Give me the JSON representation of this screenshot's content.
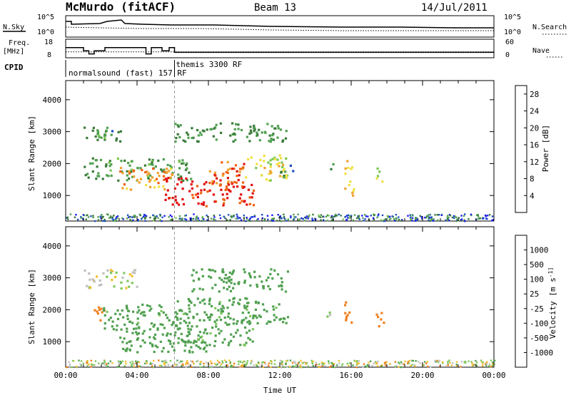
{
  "header": {
    "station": "McMurdo (fitACF)",
    "beam": "Beam 13",
    "date": "14/Jul/2011"
  },
  "summary": {
    "left_labels": {
      "nsky": "N.Sky",
      "freq_top": "Freq.",
      "freq_unit": "[MHz]",
      "cpid": "CPID"
    },
    "right_labels": {
      "nsearch": "N.Search",
      "nave": "Nave"
    },
    "nsky_ticks": [
      "10^5",
      "10^0"
    ],
    "nsearch_ticks": [
      "10^5",
      "10^0"
    ],
    "freq_ticks": [
      "18",
      "8"
    ],
    "nave_ticks": [
      "60",
      "0"
    ],
    "cpid_runs": [
      {
        "label": "normalsound (fast) 157 RF",
        "start_h": 0.0
      },
      {
        "label": "themis 3300 RF",
        "start_h": 6.1
      }
    ],
    "freq_series": [
      [
        0.0,
        14
      ],
      [
        1.0,
        14
      ],
      [
        1.0,
        12
      ],
      [
        1.3,
        12
      ],
      [
        1.3,
        10
      ],
      [
        1.6,
        10
      ],
      [
        1.6,
        12
      ],
      [
        2.2,
        12
      ],
      [
        2.2,
        14
      ],
      [
        4.5,
        14
      ],
      [
        4.5,
        10
      ],
      [
        4.8,
        10
      ],
      [
        4.8,
        14
      ],
      [
        5.4,
        14
      ],
      [
        5.4,
        12
      ],
      [
        5.8,
        12
      ],
      [
        5.8,
        14
      ],
      [
        6.1,
        14
      ],
      [
        6.1,
        11
      ],
      [
        24.0,
        11
      ]
    ],
    "nave_series": [
      [
        0.0,
        20
      ],
      [
        24.0,
        20
      ]
    ]
  },
  "colors": {
    "power_scale": [
      "#1c1cf0",
      "#1c50c0",
      "#3a7a3a",
      "#50a050",
      "#7ac850",
      "#f0e040",
      "#f0a030",
      "#f06010",
      "#e01010"
    ],
    "velocity_scale": [
      "#2040c0",
      "#3a6a40",
      "#50a050",
      "#80c860",
      "#c0c0c0",
      "#f0c030",
      "#f08020",
      "#f04010",
      "#e01010"
    ]
  },
  "chart_data": [
    {
      "type": "heatmap",
      "title": "",
      "xlabel": "",
      "ylabel": "Slant Range [km]",
      "xlim": [
        0,
        24
      ],
      "ylim": [
        200,
        4600
      ],
      "x_ticks": [
        "00:00",
        "04:00",
        "08:00",
        "12:00",
        "16:00",
        "20:00",
        "00:00"
      ],
      "y_ticks": [
        1000,
        2000,
        3000,
        4000
      ],
      "colorbar": {
        "label": "Power [dB]",
        "ticks": [
          4,
          8,
          12,
          16,
          20,
          24,
          28
        ],
        "range": [
          0,
          30
        ]
      },
      "regions": [
        {
          "t0": 1.0,
          "t1": 3.2,
          "r0": 2700,
          "r1": 3200,
          "value": 9
        },
        {
          "t0": 1.6,
          "t1": 2.2,
          "r0": 2800,
          "r1": 3100,
          "value": 12
        },
        {
          "t0": 1.0,
          "t1": 7.0,
          "r0": 1500,
          "r1": 2200,
          "value": 11
        },
        {
          "t0": 3.0,
          "t1": 6.0,
          "r0": 1200,
          "r1": 1900,
          "value": 22
        },
        {
          "t0": 5.5,
          "t1": 10.5,
          "r0": 700,
          "r1": 1600,
          "value": 28
        },
        {
          "t0": 8.0,
          "t1": 10.0,
          "r0": 1400,
          "r1": 2100,
          "value": 25
        },
        {
          "t0": 6.0,
          "t1": 12.4,
          "r0": 2700,
          "r1": 3300,
          "value": 10
        },
        {
          "t0": 10.0,
          "t1": 12.4,
          "r0": 1500,
          "r1": 2300,
          "value": 18
        },
        {
          "t0": 12.0,
          "t1": 12.8,
          "r0": 1600,
          "r1": 2000,
          "value": 9
        },
        {
          "t0": 14.7,
          "t1": 15.0,
          "r0": 1800,
          "r1": 2100,
          "value": 10
        },
        {
          "t0": 15.6,
          "t1": 16.1,
          "r0": 1000,
          "r1": 2200,
          "value": 20
        },
        {
          "t0": 17.3,
          "t1": 17.7,
          "r0": 1400,
          "r1": 2000,
          "value": 16
        }
      ]
    },
    {
      "type": "heatmap",
      "title": "",
      "xlabel": "Time UT",
      "ylabel": "Slant Range [km]",
      "xlim": [
        0,
        24
      ],
      "ylim": [
        200,
        4600
      ],
      "x_ticks": [
        "00:00",
        "04:00",
        "08:00",
        "12:00",
        "16:00",
        "20:00",
        "00:00"
      ],
      "y_ticks": [
        1000,
        2000,
        3000,
        4000
      ],
      "colorbar": {
        "label": "Velocity [m s^-1]",
        "ticks": [
          "1000",
          "500",
          "100",
          "25",
          "-25",
          "-100",
          "-500",
          "-1000"
        ]
      },
      "regions": [
        {
          "t0": 1.0,
          "t1": 4.0,
          "r0": 2700,
          "r1": 3300,
          "value": 0
        },
        {
          "t0": 1.5,
          "t1": 2.2,
          "r0": 1700,
          "r1": 2300,
          "value": -200
        },
        {
          "t0": 2.0,
          "t1": 7.0,
          "r0": 1400,
          "r1": 2200,
          "value": 150
        },
        {
          "t0": 3.0,
          "t1": 8.0,
          "r0": 700,
          "r1": 1400,
          "value": 200
        },
        {
          "t0": 6.0,
          "t1": 10.5,
          "r0": 900,
          "r1": 2400,
          "value": 150
        },
        {
          "t0": 7.0,
          "t1": 12.4,
          "r0": 2600,
          "r1": 3300,
          "value": 300
        },
        {
          "t0": 10.0,
          "t1": 12.4,
          "r0": 1600,
          "r1": 2300,
          "value": 150
        },
        {
          "t0": 14.5,
          "t1": 15.0,
          "r0": 1800,
          "r1": 2100,
          "value": 80
        },
        {
          "t0": 15.6,
          "t1": 16.1,
          "r0": 1500,
          "r1": 2300,
          "value": -300
        },
        {
          "t0": 17.3,
          "t1": 17.8,
          "r0": 1500,
          "r1": 2000,
          "value": -300
        }
      ]
    }
  ]
}
